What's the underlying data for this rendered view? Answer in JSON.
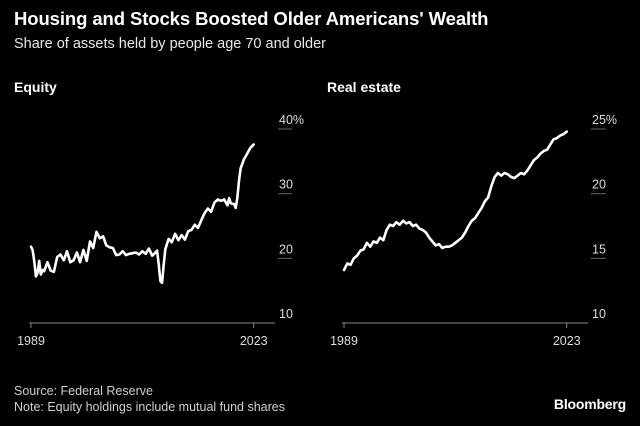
{
  "title": "Housing and Stocks Boosted Older Americans' Wealth",
  "subtitle": "Share of assets held by people age 70 and older",
  "source": "Source: Federal Reserve",
  "note": "Note: Equity holdings include mutual fund shares",
  "logo": "Bloomberg",
  "colors": {
    "background": "#000000",
    "line": "#ffffff",
    "grid": "#666666"
  },
  "chart_data": [
    {
      "type": "line",
      "title": "Equity",
      "unit_suffix": "%",
      "x_ticks": [
        "1989",
        "2023"
      ],
      "xlim": [
        1989,
        2023.5
      ],
      "ylim": [
        10,
        40
      ],
      "y_ticks": [
        10,
        20,
        30,
        40
      ],
      "y_tick_labels": [
        "10",
        "20",
        "30",
        "40%"
      ],
      "grid": "horizontal, right side",
      "series": [
        {
          "x": [
            1989.0,
            1989.25,
            1989.5,
            1989.75,
            1990.0,
            1990.25,
            1990.5,
            1990.75,
            1991.0,
            1991.5,
            1992.0,
            1992.5,
            1993.0,
            1993.5,
            1994.0,
            1994.5,
            1995.0,
            1995.5,
            1996.0,
            1996.5,
            1997.0,
            1997.5,
            1998.0,
            1998.5,
            1999.0,
            1999.5,
            2000.0,
            2000.5,
            2001.0,
            2001.5,
            2002.0,
            2002.5,
            2003.0,
            2003.5,
            2004.0,
            2004.5,
            2005.0,
            2005.5,
            2006.0,
            2006.5,
            2007.0,
            2007.5,
            2008.0,
            2008.25,
            2008.5,
            2008.75,
            2009.0,
            2009.25,
            2009.5,
            2010.0,
            2010.5,
            2011.0,
            2011.5,
            2012.0,
            2012.5,
            2013.0,
            2013.5,
            2014.0,
            2014.5,
            2015.0,
            2015.5,
            2016.0,
            2016.5,
            2017.0,
            2017.5,
            2018.0,
            2018.5,
            2019.0,
            2019.25,
            2019.5,
            2020.0,
            2020.25,
            2020.5,
            2020.75,
            2021.0,
            2021.5,
            2022.0,
            2022.5,
            2023.0
          ],
          "y": [
            21.8,
            21.3,
            19.5,
            17.2,
            17.8,
            19.6,
            17.5,
            18.2,
            18.0,
            19.4,
            18.1,
            17.9,
            20.2,
            20.6,
            19.7,
            21.1,
            19.4,
            19.7,
            20.9,
            19.4,
            21.3,
            19.6,
            22.6,
            21.6,
            24.1,
            23.1,
            23.4,
            22.0,
            21.7,
            21.6,
            20.5,
            20.6,
            21.1,
            20.5,
            20.7,
            20.8,
            20.9,
            20.6,
            21.1,
            20.7,
            21.5,
            20.4,
            20.9,
            21.2,
            19.1,
            16.5,
            16.2,
            19.0,
            21.4,
            23.0,
            22.5,
            23.8,
            22.8,
            23.6,
            22.9,
            24.2,
            24.4,
            25.2,
            24.7,
            25.9,
            27.0,
            27.7,
            27.2,
            28.6,
            29.1,
            28.9,
            29.1,
            28.2,
            29.3,
            28.5,
            28.4,
            27.8,
            29.3,
            32.0,
            33.9,
            35.3,
            36.2,
            37.1,
            37.6
          ]
        }
      ]
    },
    {
      "type": "line",
      "title": "Real estate",
      "unit_suffix": "%",
      "x_ticks": [
        "1989",
        "2023"
      ],
      "xlim": [
        1989,
        2023.5
      ],
      "ylim": [
        10,
        25
      ],
      "y_ticks": [
        10,
        15,
        20,
        25
      ],
      "y_tick_labels": [
        "10",
        "15",
        "20",
        "25%"
      ],
      "grid": "horizontal, right side",
      "series": [
        {
          "x": [
            1989.0,
            1989.5,
            1990.0,
            1990.5,
            1991.0,
            1991.5,
            1992.0,
            1992.5,
            1993.0,
            1993.5,
            1994.0,
            1994.5,
            1995.0,
            1995.5,
            1996.0,
            1996.5,
            1997.0,
            1997.5,
            1998.0,
            1998.5,
            1999.0,
            1999.5,
            2000.0,
            2000.5,
            2001.0,
            2001.5,
            2002.0,
            2002.5,
            2003.0,
            2003.5,
            2004.0,
            2004.5,
            2005.0,
            2005.5,
            2006.0,
            2006.5,
            2007.0,
            2007.5,
            2008.0,
            2008.5,
            2009.0,
            2009.5,
            2010.0,
            2010.5,
            2011.0,
            2011.5,
            2012.0,
            2012.5,
            2013.0,
            2013.5,
            2014.0,
            2014.5,
            2015.0,
            2015.5,
            2016.0,
            2016.5,
            2017.0,
            2017.5,
            2018.0,
            2018.5,
            2019.0,
            2019.5,
            2020.0,
            2020.5,
            2021.0,
            2021.5,
            2022.0,
            2022.5,
            2023.0
          ],
          "y": [
            14.1,
            14.6,
            14.5,
            15.0,
            15.2,
            15.6,
            15.7,
            16.2,
            15.9,
            16.3,
            16.2,
            16.6,
            16.4,
            17.2,
            17.6,
            17.5,
            17.8,
            17.6,
            17.9,
            17.7,
            17.8,
            17.5,
            17.6,
            17.3,
            17.2,
            17.0,
            16.6,
            16.3,
            16.0,
            16.1,
            15.8,
            15.9,
            15.9,
            16.0,
            16.2,
            16.4,
            16.6,
            17.0,
            17.5,
            17.9,
            18.1,
            18.5,
            18.9,
            19.4,
            19.7,
            20.6,
            21.3,
            21.6,
            21.4,
            21.6,
            21.5,
            21.3,
            21.2,
            21.4,
            21.6,
            21.5,
            21.8,
            22.2,
            22.6,
            22.8,
            23.1,
            23.3,
            23.4,
            23.8,
            24.2,
            24.3,
            24.5,
            24.6,
            24.8
          ]
        }
      ]
    }
  ]
}
